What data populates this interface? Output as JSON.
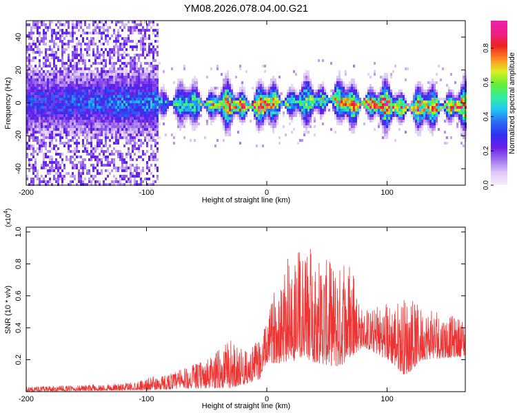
{
  "title": "YM08.2026.078.04.00.G21",
  "colors": {
    "signal": "#ee3333",
    "background_spectrum": "#7a2ee6",
    "colorbar": [
      "#f7f0fb",
      "#dcc8f5",
      "#a070ee",
      "#6a1fe8",
      "#3030f0",
      "#2a6cf5",
      "#22c8f0",
      "#33ee99",
      "#66ee33",
      "#ddee22",
      "#ff8822",
      "#ee2222",
      "#ee2288",
      "#ee22aa"
    ]
  },
  "chart_data": [
    {
      "type": "heatmap",
      "xlabel": "Height of straight line (km)",
      "ylabel": "Frequency (Hz)",
      "xlim": [
        -200,
        165
      ],
      "ylim": [
        -50,
        50
      ],
      "xticks": [
        -200,
        -100,
        0,
        100
      ],
      "yticks": [
        -40,
        -20,
        0,
        20,
        40
      ],
      "colorbar": {
        "label": "Normalized spectral amplitude",
        "range": [
          0.0,
          0.96
        ],
        "ticks": [
          0.0,
          0.2,
          0.4,
          0.6,
          0.8
        ]
      },
      "band_center": [
        [
          -200,
          0
        ],
        [
          -90,
          0
        ],
        [
          -10,
          -2
        ],
        [
          0,
          -1
        ],
        [
          60,
          2
        ],
        [
          72,
          -2
        ],
        [
          80,
          0
        ],
        [
          115,
          -3
        ],
        [
          165,
          -2
        ]
      ],
      "band_peak_amplitude": [
        [
          -200,
          0.35
        ],
        [
          -90,
          0.45
        ],
        [
          -50,
          0.7
        ],
        [
          -10,
          0.95
        ],
        [
          20,
          0.6
        ],
        [
          60,
          0.75
        ],
        [
          85,
          0.95
        ],
        [
          120,
          0.8
        ],
        [
          165,
          0.9
        ]
      ],
      "noise_cutoff_km": -90
    },
    {
      "type": "line",
      "xlabel": "Height of straight line (km)",
      "ylabel": "SNR (10 * v/v)",
      "yscale_label": "(x10",
      "yscale_exp": "4",
      "yscale_close": ")",
      "xlim": [
        -200,
        165
      ],
      "ylim": [
        0,
        1.03
      ],
      "xticks": [
        -200,
        -100,
        0,
        100
      ],
      "yticks": [
        0.2,
        0.4,
        0.6,
        0.8,
        1.0
      ],
      "envelope": [
        [
          -200,
          0.03
        ],
        [
          -160,
          0.04
        ],
        [
          -120,
          0.05
        ],
        [
          -90,
          0.1
        ],
        [
          -70,
          0.14
        ],
        [
          -50,
          0.2
        ],
        [
          -30,
          0.32
        ],
        [
          -15,
          0.24
        ],
        [
          -5,
          0.36
        ],
        [
          0,
          0.42
        ],
        [
          10,
          0.78
        ],
        [
          20,
          0.85
        ],
        [
          35,
          0.9
        ],
        [
          55,
          0.8
        ],
        [
          70,
          0.78
        ],
        [
          80,
          0.5
        ],
        [
          100,
          0.55
        ],
        [
          115,
          0.6
        ],
        [
          130,
          0.52
        ],
        [
          150,
          0.48
        ],
        [
          165,
          0.46
        ]
      ],
      "baseline": [
        [
          -200,
          0.0
        ],
        [
          -100,
          0.01
        ],
        [
          -60,
          0.02
        ],
        [
          -30,
          0.02
        ],
        [
          -5,
          0.08
        ],
        [
          0,
          0.18
        ],
        [
          10,
          0.18
        ],
        [
          30,
          0.2
        ],
        [
          60,
          0.15
        ],
        [
          80,
          0.28
        ],
        [
          100,
          0.2
        ],
        [
          115,
          0.1
        ],
        [
          130,
          0.2
        ],
        [
          165,
          0.22
        ]
      ]
    }
  ]
}
